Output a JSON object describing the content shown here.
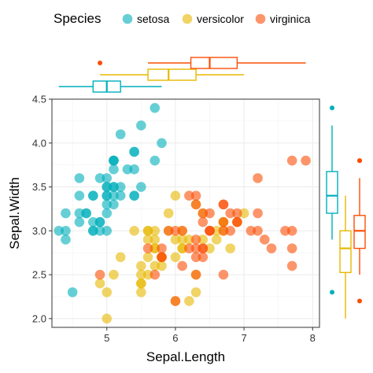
{
  "chart_data": {
    "type": "scatter",
    "title": "",
    "xlabel": "Sepal.Length",
    "ylabel": "Sepal.Width",
    "xlim": [
      4.2,
      8.1
    ],
    "ylim": [
      1.9,
      4.5
    ],
    "xticks": [
      "5",
      "6",
      "7",
      "8"
    ],
    "yticks": [
      "2.0",
      "2.5",
      "3.0",
      "3.5",
      "4.0",
      "4.5"
    ],
    "grid": true,
    "legend": {
      "title": "Species",
      "position": "top"
    },
    "marginal": "boxplot",
    "series": [
      {
        "name": "setosa",
        "color": "#00AFBB",
        "x": [
          5.1,
          4.9,
          4.7,
          4.6,
          5.0,
          5.4,
          4.6,
          5.0,
          4.4,
          4.9,
          5.4,
          4.8,
          4.8,
          4.3,
          5.8,
          5.7,
          5.4,
          5.1,
          5.7,
          5.1,
          5.4,
          5.1,
          4.6,
          5.1,
          4.8,
          5.0,
          5.0,
          5.2,
          5.2,
          4.7,
          4.8,
          5.4,
          5.2,
          5.5,
          4.9,
          5.0,
          5.5,
          4.9,
          4.4,
          5.1,
          5.0,
          4.5,
          4.4,
          5.0,
          5.1,
          4.8,
          5.1,
          4.6,
          5.3,
          5.0
        ],
        "y": [
          3.5,
          3.0,
          3.2,
          3.1,
          3.6,
          3.9,
          3.4,
          3.4,
          2.9,
          3.1,
          3.7,
          3.4,
          3.0,
          3.0,
          4.0,
          4.4,
          3.9,
          3.5,
          3.8,
          3.8,
          3.4,
          3.7,
          3.6,
          3.3,
          3.4,
          3.0,
          3.4,
          3.5,
          3.4,
          3.2,
          3.1,
          3.4,
          4.1,
          4.2,
          3.1,
          3.2,
          3.5,
          3.6,
          3.0,
          3.4,
          3.5,
          2.3,
          3.2,
          3.5,
          3.8,
          3.0,
          3.8,
          3.2,
          3.7,
          3.3
        ]
      },
      {
        "name": "versicolor",
        "color": "#E7B800",
        "x": [
          7.0,
          6.4,
          6.9,
          5.5,
          6.5,
          5.7,
          6.3,
          4.9,
          6.6,
          5.2,
          5.0,
          5.9,
          6.0,
          6.1,
          5.6,
          6.7,
          5.6,
          5.8,
          6.2,
          5.6,
          5.9,
          6.1,
          6.3,
          6.1,
          6.4,
          6.6,
          6.8,
          6.7,
          6.0,
          5.7,
          5.5,
          5.5,
          5.8,
          6.0,
          5.4,
          6.0,
          6.7,
          6.3,
          5.6,
          5.5,
          5.5,
          6.1,
          5.8,
          5.0,
          5.6,
          5.7,
          5.7,
          6.2,
          5.1,
          5.7
        ],
        "y": [
          3.2,
          3.2,
          3.1,
          2.3,
          2.8,
          2.8,
          3.3,
          2.4,
          2.9,
          2.7,
          2.0,
          3.0,
          2.2,
          2.9,
          2.9,
          3.1,
          3.0,
          2.7,
          2.2,
          2.5,
          3.2,
          2.8,
          2.5,
          2.8,
          2.9,
          3.0,
          2.8,
          3.0,
          2.9,
          2.6,
          2.4,
          2.4,
          2.7,
          2.7,
          3.0,
          3.4,
          3.1,
          2.3,
          3.0,
          2.5,
          2.6,
          3.0,
          2.6,
          2.3,
          2.7,
          3.0,
          2.9,
          2.9,
          2.5,
          2.8
        ]
      },
      {
        "name": "virginica",
        "color": "#FC4E07",
        "x": [
          6.3,
          5.8,
          7.1,
          6.3,
          6.5,
          7.6,
          4.9,
          7.3,
          6.7,
          7.2,
          6.5,
          6.4,
          6.8,
          5.7,
          5.8,
          6.4,
          6.5,
          7.7,
          7.7,
          6.0,
          6.9,
          5.6,
          7.7,
          6.3,
          6.7,
          7.2,
          6.2,
          6.1,
          6.4,
          7.2,
          7.4,
          7.9,
          6.4,
          6.3,
          6.1,
          7.7,
          6.3,
          6.4,
          6.0,
          6.9,
          6.7,
          6.9,
          5.8,
          6.8,
          6.7,
          6.7,
          6.3,
          6.5,
          6.2,
          5.9
        ],
        "y": [
          3.3,
          2.7,
          3.0,
          2.9,
          3.0,
          3.0,
          2.5,
          2.9,
          2.5,
          3.6,
          3.2,
          2.7,
          3.0,
          2.5,
          2.8,
          3.2,
          3.0,
          3.8,
          2.6,
          2.2,
          3.2,
          2.8,
          2.8,
          2.7,
          3.3,
          3.2,
          2.8,
          3.0,
          2.8,
          3.0,
          2.8,
          3.8,
          2.8,
          2.8,
          2.6,
          3.0,
          3.4,
          3.1,
          3.0,
          3.1,
          3.1,
          3.1,
          2.7,
          3.2,
          3.3,
          3.0,
          2.5,
          3.0,
          3.4,
          3.0
        ]
      }
    ]
  }
}
